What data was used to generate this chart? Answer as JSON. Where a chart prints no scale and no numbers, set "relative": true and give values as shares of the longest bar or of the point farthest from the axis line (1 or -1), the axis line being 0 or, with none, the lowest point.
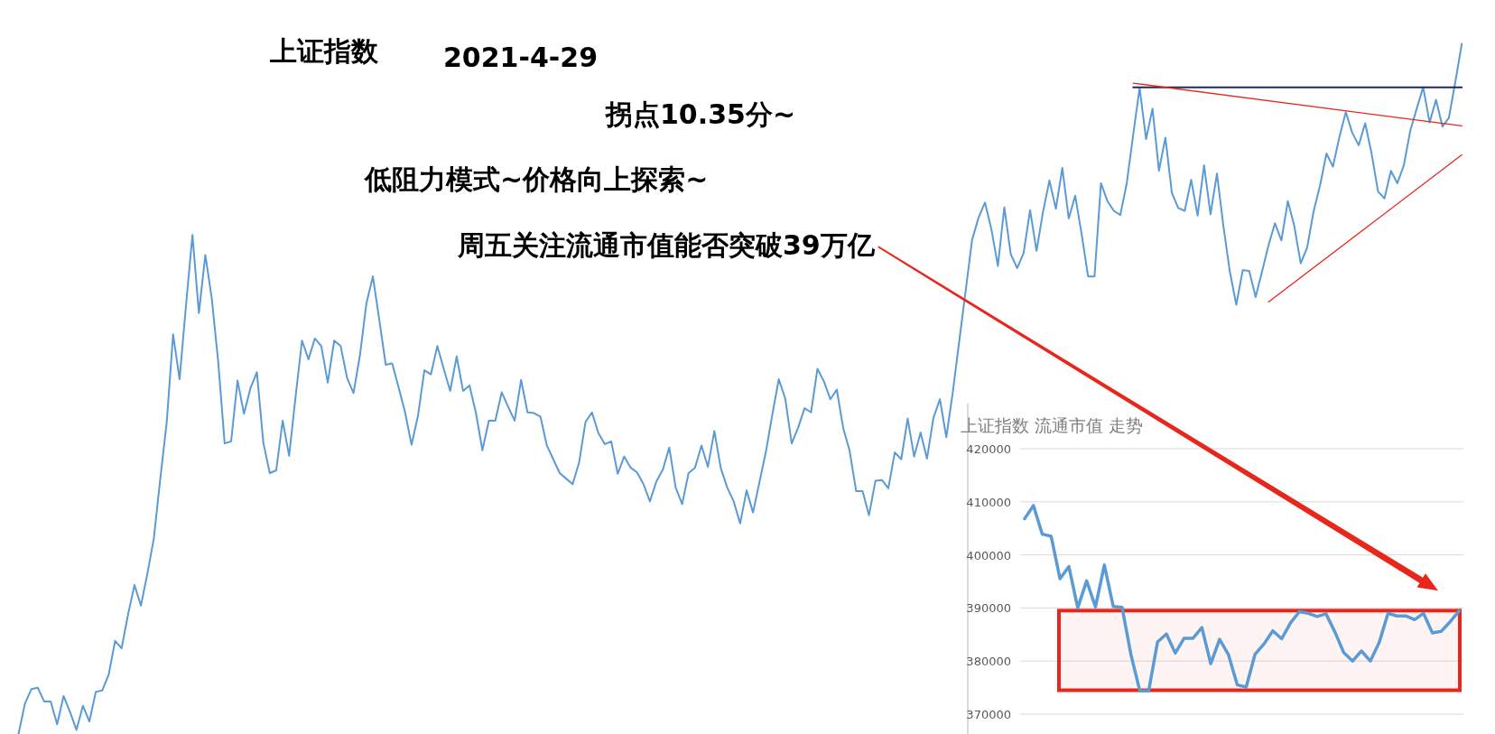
{
  "chart_data": [
    {
      "type": "line",
      "title": "上证指数",
      "annotations": [
        "2021-4-29",
        "拐点10.35分~",
        "低阻力模式~价格向上探索~",
        "周五关注流通市值能否突破39万亿"
      ],
      "relative": true,
      "categories": [
        null,
        null,
        null,
        null,
        null,
        null,
        null,
        null,
        null,
        null,
        null,
        null,
        null,
        null,
        null,
        null,
        null,
        null,
        null,
        null,
        null,
        null,
        null,
        null,
        null,
        null,
        null,
        null,
        null,
        null,
        null,
        null,
        null,
        null,
        null,
        null,
        null,
        null,
        null,
        null,
        null,
        null,
        null,
        null,
        null,
        null,
        null,
        null,
        null,
        null,
        null,
        null,
        null,
        null,
        null,
        null,
        null,
        null,
        null,
        null,
        null,
        null,
        null,
        null,
        null,
        null,
        null,
        null,
        null,
        null,
        null,
        null,
        null,
        null,
        null,
        null,
        null,
        null,
        null,
        null,
        null,
        null,
        null,
        null,
        null,
        null,
        null,
        null,
        null,
        null,
        null,
        null,
        null,
        null,
        null,
        null,
        null,
        null,
        null,
        null,
        null,
        null,
        null,
        null,
        null,
        null,
        null,
        null,
        null,
        null,
        null,
        null,
        null,
        null,
        null,
        null,
        null,
        null,
        null,
        null,
        null,
        null,
        null,
        null,
        null,
        null,
        null,
        null,
        null,
        null,
        null,
        null,
        null,
        null,
        null,
        null,
        null,
        null,
        null,
        null,
        null,
        null,
        null,
        null,
        null,
        null,
        null,
        null,
        null,
        null,
        null,
        null,
        null,
        null,
        null,
        null,
        null,
        null,
        null,
        null,
        null,
        null,
        null,
        null,
        null,
        null,
        null,
        null,
        null,
        null,
        null,
        null,
        null,
        null,
        null,
        null,
        null,
        null,
        null,
        null,
        null,
        null,
        null,
        null,
        null,
        null,
        null,
        null,
        null,
        null,
        null,
        null,
        null,
        null,
        null,
        null,
        null,
        null,
        null,
        null,
        null,
        null,
        null,
        null,
        null,
        null,
        null,
        null,
        null,
        null,
        null,
        null,
        null,
        null,
        null,
        null,
        null,
        null,
        null,
        null,
        null,
        null,
        null,
        null,
        null
      ],
      "series": [
        {
          "color": "#5b9bd5",
          "values": [
            0,
            0.044,
            0.065,
            0.067,
            0.047,
            0.047,
            0.014,
            0.055,
            0.032,
            0.006,
            0.041,
            0.018,
            0.061,
            0.063,
            0.086,
            0.135,
            0.124,
            0.173,
            0.216,
            0.186,
            0.232,
            0.283,
            0.369,
            0.451,
            0.579,
            0.514,
            0.621,
            0.723,
            0.61,
            0.694,
            0.631,
            0.539,
            0.421,
            0.424,
            0.512,
            0.464,
            0.501,
            0.524,
            0.422,
            0.378,
            0.382,
            0.454,
            0.403,
            0.488,
            0.57,
            0.543,
            0.573,
            0.562,
            0.509,
            0.57,
            0.562,
            0.516,
            0.494,
            0.549,
            0.624,
            0.663,
            0.6,
            0.535,
            0.537,
            0.502,
            0.466,
            0.419,
            0.461,
            0.527,
            0.521,
            0.562,
            0.529,
            0.497,
            0.547,
            0.497,
            0.505,
            0.465,
            0.411,
            0.454,
            0.454,
            0.495,
            0.474,
            0.454,
            0.513,
            0.466,
            0.465,
            0.46,
            0.418,
            0.398,
            0.378,
            0.37,
            0.362,
            0.393,
            0.452,
            0.466,
            0.436,
            0.42,
            0.424,
            0.377,
            0.402,
            0.386,
            0.379,
            0.362,
            0.337,
            0.366,
            0.383,
            0.415,
            0.357,
            0.333,
            0.378,
            0.386,
            0.418,
            0.387,
            0.439,
            0.385,
            0.357,
            0.337,
            0.305,
            0.353,
            0.321,
            0.365,
            0.409,
            0.463,
            0.514,
            0.486,
            0.421,
            0.444,
            0.472,
            0.466,
            0.529,
            0.511,
            0.485,
            0.499,
            0.443,
            0.41,
            0.352,
            0.352,
            0.317,
            0.367,
            0.368,
            0.356,
            0.408,
            0.398,
            0.457,
            0.402,
            0.437,
            0.399,
            0.458,
            0.485,
            0.43,
            0.495,
            0.569,
            0.642,
            0.716,
            0.748,
            0.77,
            0.731,
            0.678,
            0.763,
            0.695,
            0.675,
            0.697,
            0.759,
            0.7,
            0.756,
            0.802,
            0.761,
            0.82,
            0.747,
            0.78,
            0.724,
            0.663,
            0.663,
            0.798,
            0.772,
            0.758,
            0.752,
            0.798,
            0.868,
            0.936,
            0.862,
            0.906,
            0.816,
            0.864,
            0.784,
            0.762,
            0.758,
            0.803,
            0.751,
            0.824,
            0.753,
            0.812,
            0.736,
            0.67,
            0.622,
            0.672,
            0.671,
            0.633,
            0.67,
            0.708,
            0.74,
            0.715,
            0.772,
            0.736,
            0.682,
            0.705,
            0.757,
            0.795,
            0.841,
            0.822,
            0.865,
            0.901,
            0.871,
            0.853,
            0.885,
            0.841,
            0.786,
            0.776,
            0.816,
            0.798,
            0.824,
            0.874,
            0.906,
            0.937,
            0.886,
            0.919,
            0.88,
            0.893,
            0.945,
            1
          ]
        },
        {
          "color": "#1f2a5c",
          "values": [
            null,
            null,
            null,
            null,
            null,
            null,
            null,
            null,
            null,
            null,
            null,
            null,
            null,
            null,
            null,
            null,
            null,
            null,
            null,
            null,
            null,
            null,
            null,
            null,
            null,
            null,
            null,
            null,
            null,
            null,
            null,
            null,
            null,
            null,
            null,
            null,
            null,
            null,
            null,
            null,
            null,
            null,
            null,
            null,
            null,
            null,
            null,
            null,
            null,
            null,
            null,
            null,
            null,
            null,
            null,
            null,
            null,
            null,
            null,
            null,
            null,
            null,
            null,
            null,
            null,
            null,
            null,
            null,
            null,
            null,
            null,
            null,
            null,
            null,
            null,
            null,
            null,
            null,
            null,
            null,
            null,
            null,
            null,
            null,
            null,
            null,
            null,
            null,
            null,
            null,
            null,
            null,
            null,
            null,
            null,
            null,
            null,
            null,
            null,
            null,
            null,
            null,
            null,
            null,
            null,
            null,
            null,
            null,
            null,
            null,
            null,
            null,
            null,
            null,
            null,
            null,
            null,
            null,
            null,
            null,
            null,
            null,
            null,
            null,
            null,
            null,
            null,
            null,
            null,
            null,
            null,
            null,
            null,
            null,
            null,
            null,
            null,
            null,
            null,
            null,
            null,
            null,
            null,
            null,
            null,
            null,
            null,
            null,
            null,
            null,
            null,
            null,
            null,
            null,
            null,
            null,
            null,
            null,
            null,
            null,
            null,
            null,
            null,
            null,
            null,
            null,
            null,
            null,
            null,
            null,
            null,
            null,
            null,
            0.937,
            null,
            null,
            null,
            null,
            null,
            null,
            null,
            null,
            null,
            null,
            null,
            null,
            null,
            null,
            null,
            null,
            null,
            null,
            null,
            null,
            null,
            null,
            null,
            null,
            null,
            null,
            null,
            null,
            null,
            null,
            null,
            null,
            null,
            null,
            null,
            null,
            null,
            null,
            null,
            null,
            null,
            null,
            null,
            null,
            null,
            null,
            null,
            null,
            null,
            null,
            0.937
          ]
        },
        {
          "color": "#e8261c",
          "values": [
            null,
            null,
            null,
            null,
            null,
            null,
            null,
            null,
            null,
            null,
            null,
            null,
            null,
            null,
            null,
            null,
            null,
            null,
            null,
            null,
            null,
            null,
            null,
            null,
            null,
            null,
            null,
            null,
            null,
            null,
            null,
            null,
            null,
            null,
            null,
            null,
            null,
            null,
            null,
            null,
            null,
            null,
            null,
            null,
            null,
            null,
            null,
            null,
            null,
            null,
            null,
            null,
            null,
            null,
            null,
            null,
            null,
            null,
            null,
            null,
            null,
            null,
            null,
            null,
            null,
            null,
            null,
            null,
            null,
            null,
            null,
            null,
            null,
            null,
            null,
            null,
            null,
            null,
            null,
            null,
            null,
            null,
            null,
            null,
            null,
            null,
            null,
            null,
            null,
            null,
            null,
            null,
            null,
            null,
            null,
            null,
            null,
            null,
            null,
            null,
            null,
            null,
            null,
            null,
            null,
            null,
            null,
            null,
            null,
            null,
            null,
            null,
            null,
            null,
            null,
            null,
            null,
            null,
            null,
            null,
            null,
            null,
            null,
            null,
            null,
            null,
            null,
            null,
            null,
            null,
            null,
            null,
            null,
            null,
            null,
            null,
            null,
            null,
            null,
            null,
            null,
            null,
            null,
            null,
            null,
            null,
            null,
            null,
            null,
            null,
            null,
            null,
            null,
            null,
            null,
            null,
            null,
            null,
            null,
            null,
            null,
            null,
            null,
            null,
            null,
            null,
            null,
            null,
            null,
            null,
            null,
            null,
            null,
            0.943,
            null,
            null,
            null,
            null,
            null,
            null,
            null,
            null,
            null,
            null,
            null,
            null,
            null,
            null,
            null,
            null,
            null,
            null,
            null,
            null,
            null,
            null,
            null,
            null,
            null,
            null,
            null,
            null,
            null,
            null,
            null,
            null,
            null,
            null,
            null,
            null,
            null,
            null,
            null,
            null,
            null,
            null,
            null,
            null,
            null,
            null,
            null,
            null,
            null,
            null,
            0.881
          ]
        },
        {
          "color": "#e8261c",
          "values": [
            null,
            null,
            null,
            null,
            null,
            null,
            null,
            null,
            null,
            null,
            null,
            null,
            null,
            null,
            null,
            null,
            null,
            null,
            null,
            null,
            null,
            null,
            null,
            null,
            null,
            null,
            null,
            null,
            null,
            null,
            null,
            null,
            null,
            null,
            null,
            null,
            null,
            null,
            null,
            null,
            null,
            null,
            null,
            null,
            null,
            null,
            null,
            null,
            null,
            null,
            null,
            null,
            null,
            null,
            null,
            null,
            null,
            null,
            null,
            null,
            null,
            null,
            null,
            null,
            null,
            null,
            null,
            null,
            null,
            null,
            null,
            null,
            null,
            null,
            null,
            null,
            null,
            null,
            null,
            null,
            null,
            null,
            null,
            null,
            null,
            null,
            null,
            null,
            null,
            null,
            null,
            null,
            null,
            null,
            null,
            null,
            null,
            null,
            null,
            null,
            null,
            null,
            null,
            null,
            null,
            null,
            null,
            null,
            null,
            null,
            null,
            null,
            null,
            null,
            null,
            null,
            null,
            null,
            null,
            null,
            null,
            null,
            null,
            null,
            null,
            null,
            null,
            null,
            null,
            null,
            null,
            null,
            null,
            null,
            null,
            null,
            null,
            null,
            null,
            null,
            null,
            null,
            null,
            null,
            null,
            null,
            null,
            null,
            null,
            null,
            null,
            null,
            null,
            null,
            null,
            null,
            null,
            null,
            null,
            null,
            null,
            null,
            null,
            null,
            null,
            null,
            null,
            null,
            null,
            null,
            null,
            null,
            null,
            null,
            null,
            null,
            null,
            null,
            null,
            null,
            null,
            null,
            null,
            null,
            null,
            null,
            null,
            null,
            null,
            null,
            null,
            null,
            null,
            null,
            0.626,
            null,
            null,
            null,
            null,
            null,
            null,
            null,
            null,
            null,
            null,
            null,
            null,
            null,
            null,
            null,
            null,
            null,
            null,
            null,
            null,
            null,
            null,
            null,
            null,
            null,
            null,
            null,
            null,
            null,
            0.839
          ]
        }
      ]
    },
    {
      "type": "line",
      "title": "上证指数 流通市值 走势",
      "categories": [
        null,
        null,
        null,
        null,
        null,
        null,
        null,
        null,
        null,
        null,
        null,
        null,
        null,
        null,
        null,
        null,
        null,
        null,
        null,
        null,
        null,
        null,
        null,
        null,
        null,
        null,
        null,
        null,
        null,
        null,
        null,
        null,
        null,
        null,
        null,
        null,
        null,
        null,
        null,
        null,
        null,
        null,
        null,
        null,
        null,
        null,
        null,
        null,
        null,
        null
      ],
      "values": [
        406800,
        409300,
        403900,
        403500,
        395500,
        397800,
        390000,
        395100,
        390200,
        398100,
        390300,
        390100,
        381200,
        374400,
        374400,
        383600,
        385100,
        381500,
        384300,
        384300,
        386300,
        379500,
        384100,
        381200,
        375500,
        375100,
        381300,
        383200,
        385700,
        384200,
        387200,
        389300,
        389000,
        388400,
        388900,
        385500,
        381600,
        380000,
        381900,
        380000,
        383500,
        389000,
        388500,
        388500,
        387800,
        389000,
        385300,
        385600,
        387400,
        389400
      ],
      "color": "#5b9bd5",
      "ylim": [
        370000,
        420000
      ],
      "yticks": [
        370000,
        380000,
        390000,
        400000,
        410000,
        420000
      ],
      "grid": "y",
      "bands": [
        {
          "axis": "y",
          "from": 374500,
          "to": 389500,
          "color": "#e8261c"
        }
      ]
    }
  ]
}
